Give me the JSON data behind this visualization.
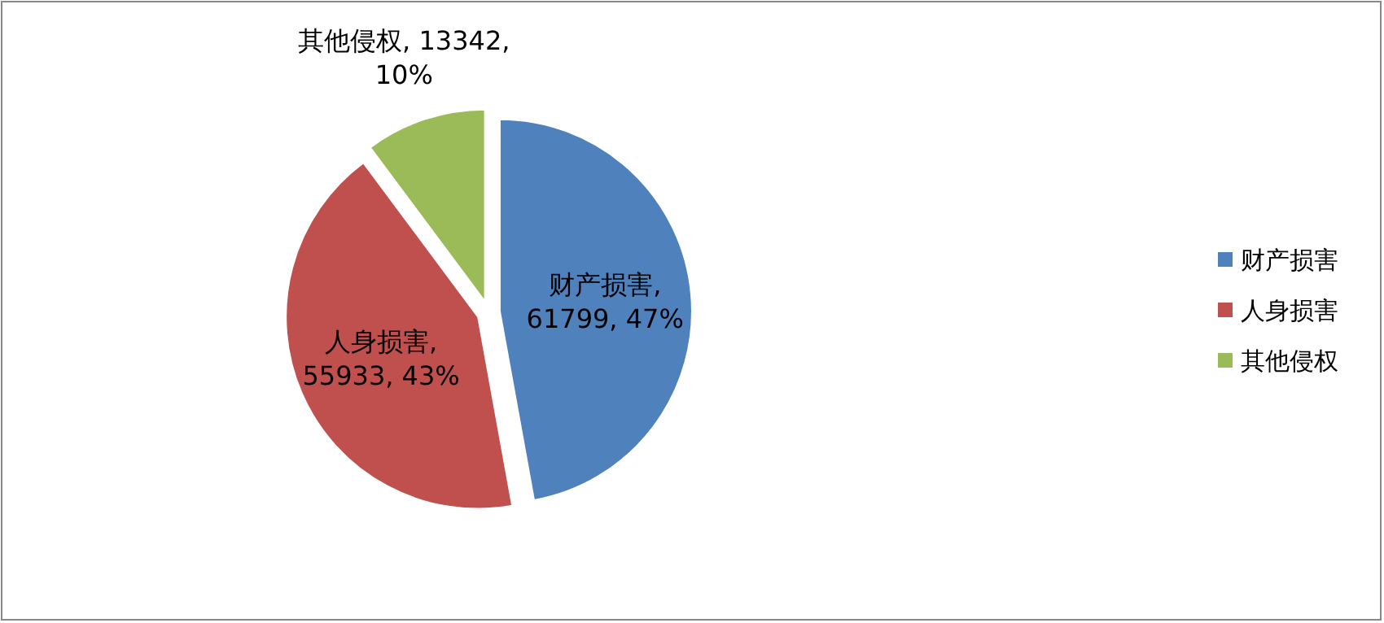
{
  "chart_data": {
    "type": "pie",
    "categories": [
      "财产损害",
      "人身损害",
      "其他侵权"
    ],
    "values": [
      61799,
      55933,
      13342
    ],
    "colors": [
      "#4f81bd",
      "#c0504d",
      "#9bbb59"
    ],
    "value_labels": [
      "财产损害,\n61799, 47%",
      "人身损害,\n55933, 43%",
      "其他侵权, 13342,\n10%"
    ],
    "legend": "right"
  }
}
